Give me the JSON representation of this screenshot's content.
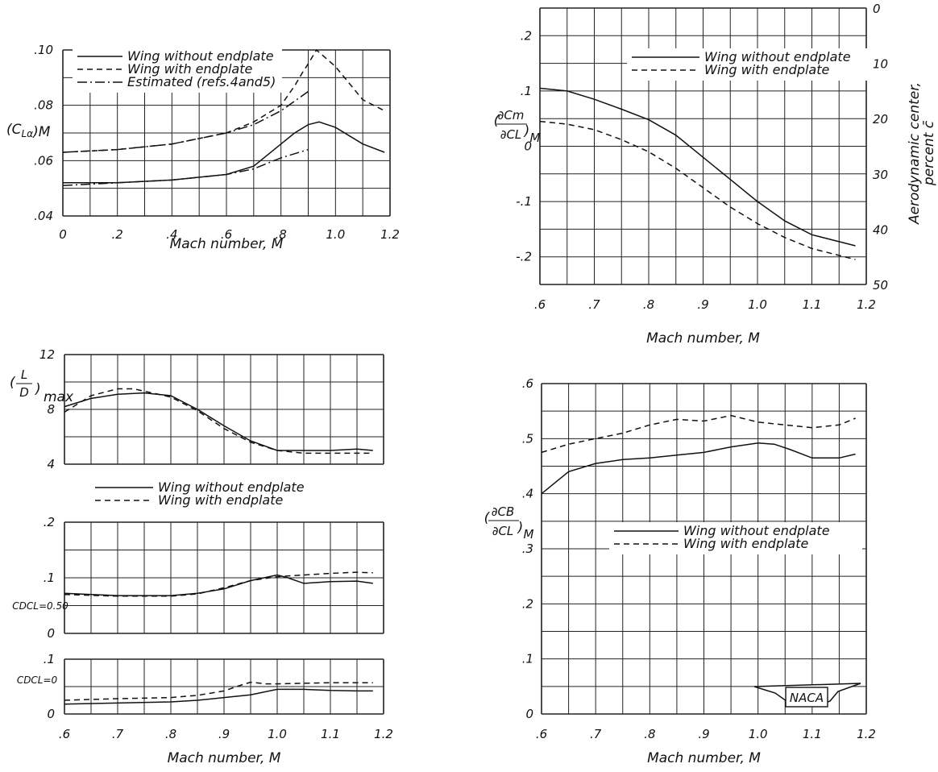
{
  "chart_data": [
    {
      "id": "cla",
      "type": "line",
      "xlabel": "Mach number, M",
      "ylabel": "(C_Lα)_M",
      "xlim": [
        0,
        1.2
      ],
      "ylim": [
        0.04,
        0.1
      ],
      "xticks": [
        "0",
        ".2",
        ".4",
        ".6",
        ".8",
        "1.0",
        "1.2"
      ],
      "yticks": [
        ".04",
        ".06",
        ".08",
        ".10"
      ],
      "grid": true,
      "legend_position": "top-right",
      "series": [
        {
          "name": "Wing without endplate",
          "style": "solid",
          "x": [
            0,
            0.2,
            0.4,
            0.6,
            0.7,
            0.8,
            0.85,
            0.9,
            0.94,
            1.0,
            1.1,
            1.18
          ],
          "y": [
            0.052,
            0.052,
            0.053,
            0.055,
            0.058,
            0.066,
            0.07,
            0.073,
            0.074,
            0.072,
            0.066,
            0.063
          ]
        },
        {
          "name": "Wing with endplate",
          "style": "dashed",
          "x": [
            0,
            0.2,
            0.4,
            0.6,
            0.7,
            0.8,
            0.85,
            0.88,
            0.9,
            0.93,
            1.0,
            1.1,
            1.18
          ],
          "y": [
            0.063,
            0.064,
            0.066,
            0.07,
            0.074,
            0.08,
            0.087,
            0.092,
            0.095,
            0.1,
            0.094,
            0.082,
            0.078
          ]
        },
        {
          "name": "Estimated (refs. 4 and 5)",
          "style": "dashdot",
          "x": [
            0,
            0.2,
            0.4,
            0.6,
            0.7,
            0.8,
            0.9
          ],
          "y": [
            0.051,
            0.052,
            0.053,
            0.055,
            0.057,
            0.061,
            0.064
          ]
        },
        {
          "name": "Estimated (refs. 4 and 5)",
          "style": "dashdot",
          "x": [
            0,
            0.2,
            0.4,
            0.6,
            0.7,
            0.8,
            0.9
          ],
          "y": [
            0.063,
            0.064,
            0.066,
            0.07,
            0.073,
            0.078,
            0.085
          ]
        }
      ]
    },
    {
      "id": "cm",
      "type": "line",
      "xlabel": "Mach number, M",
      "ylabel": "(∂Cm/∂CL)_M",
      "ylabel_right": "Aerodynamic center, percent c̄",
      "xlim": [
        0.6,
        1.2
      ],
      "ylim": [
        -0.25,
        0.25
      ],
      "xticks": [
        ".6",
        ".7",
        ".8",
        ".9",
        "1.0",
        "1.1",
        "1.2"
      ],
      "yticks": [
        "-.2",
        "-.1",
        "0",
        ".1",
        ".2"
      ],
      "yticks_right": [
        "0",
        "10",
        "20",
        "30",
        "40",
        "50"
      ],
      "grid": true,
      "legend_position": "top-right",
      "series": [
        {
          "name": "Wing without endplate",
          "style": "solid",
          "x": [
            0.6,
            0.65,
            0.7,
            0.75,
            0.8,
            0.85,
            0.9,
            0.95,
            1.0,
            1.05,
            1.1,
            1.18
          ],
          "y": [
            0.105,
            0.1,
            0.085,
            0.067,
            0.048,
            0.02,
            -0.02,
            -0.06,
            -0.1,
            -0.135,
            -0.16,
            -0.18
          ]
        },
        {
          "name": "Wing with endplate",
          "style": "dashed",
          "x": [
            0.6,
            0.65,
            0.7,
            0.75,
            0.8,
            0.85,
            0.9,
            0.95,
            1.0,
            1.05,
            1.1,
            1.18
          ],
          "y": [
            0.045,
            0.04,
            0.03,
            0.012,
            -0.01,
            -0.04,
            -0.075,
            -0.11,
            -0.14,
            -0.165,
            -0.185,
            -0.205
          ]
        }
      ]
    },
    {
      "id": "ld",
      "type": "line",
      "xlabel": "",
      "ylabel": "(L/D)_max",
      "xlim": [
        0.6,
        1.2
      ],
      "ylim": [
        4,
        12
      ],
      "yticks": [
        "4",
        "8",
        "12"
      ],
      "grid": true,
      "legend_position": "below",
      "series": [
        {
          "name": "Wing without endplate",
          "style": "solid",
          "x": [
            0.6,
            0.65,
            0.7,
            0.75,
            0.8,
            0.85,
            0.9,
            0.95,
            1.0,
            1.05,
            1.1,
            1.15,
            1.18
          ],
          "y": [
            8.2,
            8.8,
            9.1,
            9.2,
            9.0,
            8.0,
            6.8,
            5.7,
            5.0,
            5.0,
            5.0,
            5.1,
            5.0
          ]
        },
        {
          "name": "Wing with endplate",
          "style": "dashed",
          "x": [
            0.6,
            0.65,
            0.7,
            0.73,
            0.8,
            0.85,
            0.9,
            0.95,
            1.0,
            1.05,
            1.1,
            1.15,
            1.18
          ],
          "y": [
            7.8,
            9.0,
            9.5,
            9.5,
            8.9,
            7.9,
            6.6,
            5.6,
            5.0,
            4.8,
            4.8,
            4.8,
            4.8
          ]
        }
      ]
    },
    {
      "id": "cd50",
      "type": "line",
      "xlabel": "",
      "ylabel": "C_D C_L=0.50",
      "xlim": [
        0.6,
        1.2
      ],
      "ylim": [
        0,
        0.2
      ],
      "yticks": [
        "0",
        ".1",
        ".2"
      ],
      "grid": true,
      "series": [
        {
          "name": "Wing without endplate",
          "style": "solid",
          "x": [
            0.6,
            0.7,
            0.8,
            0.85,
            0.9,
            0.95,
            1.0,
            1.02,
            1.05,
            1.1,
            1.15,
            1.18
          ],
          "y": [
            0.072,
            0.068,
            0.068,
            0.072,
            0.08,
            0.095,
            0.105,
            0.1,
            0.09,
            0.093,
            0.094,
            0.09
          ]
        },
        {
          "name": "Wing with endplate",
          "style": "dashed",
          "x": [
            0.6,
            0.7,
            0.8,
            0.85,
            0.9,
            0.95,
            1.0,
            1.05,
            1.1,
            1.15,
            1.18
          ],
          "y": [
            0.07,
            0.067,
            0.067,
            0.071,
            0.082,
            0.095,
            0.102,
            0.105,
            0.108,
            0.11,
            0.109
          ]
        }
      ]
    },
    {
      "id": "cd0",
      "type": "line",
      "xlabel": "Mach number, M",
      "ylabel": "C_D C_L=0",
      "xlim": [
        0.6,
        1.2
      ],
      "ylim": [
        0,
        0.1
      ],
      "xticks": [
        ".6",
        ".7",
        ".8",
        ".9",
        "1.0",
        "1.1",
        "1.2"
      ],
      "yticks": [
        "0",
        ".1"
      ],
      "grid": true,
      "series": [
        {
          "name": "Wing without endplate",
          "style": "solid",
          "x": [
            0.6,
            0.7,
            0.8,
            0.85,
            0.9,
            0.95,
            1.0,
            1.05,
            1.1,
            1.15,
            1.18
          ],
          "y": [
            0.018,
            0.02,
            0.022,
            0.025,
            0.03,
            0.035,
            0.045,
            0.045,
            0.043,
            0.042,
            0.042
          ]
        },
        {
          "name": "Wing with endplate",
          "style": "dashed",
          "x": [
            0.6,
            0.7,
            0.8,
            0.85,
            0.9,
            0.93,
            0.95,
            0.98,
            1.0,
            1.05,
            1.1,
            1.15,
            1.18
          ],
          "y": [
            0.025,
            0.028,
            0.03,
            0.034,
            0.042,
            0.052,
            0.058,
            0.055,
            0.055,
            0.056,
            0.057,
            0.057,
            0.057
          ]
        }
      ]
    },
    {
      "id": "cb",
      "type": "line",
      "xlabel": "Mach number, M",
      "ylabel": "(∂CB/∂CL)_M",
      "xlim": [
        0.6,
        1.2
      ],
      "ylim": [
        0,
        0.6
      ],
      "xticks": [
        ".6",
        ".7",
        ".8",
        ".9",
        "1.0",
        "1.1",
        "1.2"
      ],
      "yticks": [
        "0",
        ".1",
        ".2",
        ".3",
        ".4",
        ".5",
        ".6"
      ],
      "grid": true,
      "legend_position": "middle-right",
      "series": [
        {
          "name": "Wing without endplate",
          "style": "solid",
          "x": [
            0.6,
            0.65,
            0.7,
            0.75,
            0.8,
            0.85,
            0.9,
            0.95,
            1.0,
            1.03,
            1.06,
            1.1,
            1.15,
            1.18
          ],
          "y": [
            0.4,
            0.44,
            0.455,
            0.462,
            0.465,
            0.47,
            0.475,
            0.485,
            0.492,
            0.49,
            0.48,
            0.465,
            0.465,
            0.472
          ]
        },
        {
          "name": "Wing with endplate",
          "style": "dashed",
          "x": [
            0.6,
            0.65,
            0.7,
            0.75,
            0.8,
            0.85,
            0.9,
            0.95,
            1.0,
            1.05,
            1.1,
            1.15,
            1.18
          ],
          "y": [
            0.475,
            0.49,
            0.5,
            0.51,
            0.525,
            0.535,
            0.532,
            0.542,
            0.53,
            0.525,
            0.52,
            0.525,
            0.537
          ]
        }
      ]
    }
  ],
  "legends": {
    "cla": [
      "Wing without endplate",
      "Wing with endplate",
      "Estimated (refs.4and5)"
    ],
    "cm": [
      "Wing without endplate",
      "Wing with endplate"
    ],
    "ld": [
      "Wing without endplate",
      "Wing with endplate"
    ],
    "cb": [
      "Wing without endplate",
      "Wing with endplate"
    ]
  },
  "labels": {
    "cla_y": "(C",
    "cla_y_sub": "Lα",
    "cla_y_end": ")M",
    "cm_num": "∂Cm",
    "cm_den": "∂CL",
    "cm_sub": "M",
    "cm_right": "Aerodynamic  center,",
    "cm_right2": "percent c̄",
    "ld_num": "L",
    "ld_den": "D",
    "ld_sub": "max",
    "cd50": "CDCL=0.50",
    "cd0": "CDCL=0",
    "cb_num": "∂CB",
    "cb_den": "∂CL",
    "cb_sub": "M",
    "mach": "Mach number, M",
    "logo": "NACA"
  }
}
